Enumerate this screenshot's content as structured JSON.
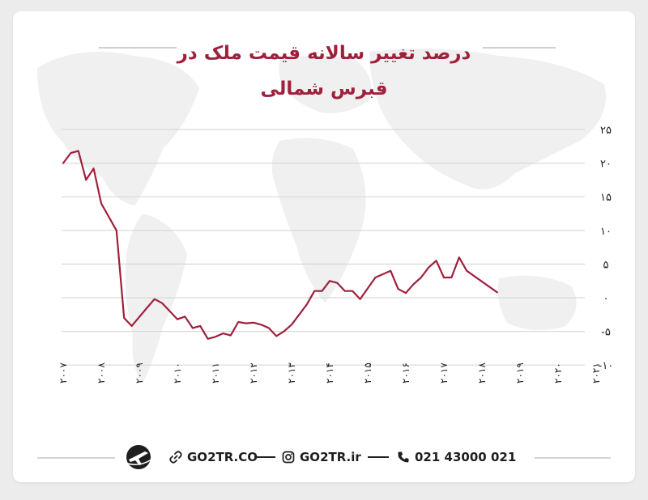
{
  "title_line1": "درصد تغییر سالانه قیمت ملک در",
  "title_line2": "قبرس شمالی",
  "colors": {
    "line": "#a0203c",
    "title": "#a0203c",
    "grid": "#d9d9d9",
    "text": "#222222"
  },
  "footer": {
    "website": "GO2TR.CO",
    "instagram": "GO2TR.ir",
    "phone": "021 43000 021",
    "icons": [
      "logo-plane-icon",
      "link-icon",
      "instagram-icon",
      "phone-icon"
    ]
  },
  "chart_data": {
    "type": "line",
    "title": "درصد تغییر سالانه قیمت ملک در قبرس شمالی",
    "xlabel": "",
    "ylabel": "",
    "ylim": [
      -10,
      25
    ],
    "y_ticks": [
      25,
      20,
      15,
      10,
      5,
      0,
      -5,
      -10
    ],
    "y_tick_labels": [
      "۲۵",
      "۲۰",
      "۱۵",
      "۱۰",
      "۵",
      "۰",
      "-۵",
      "-۱۰"
    ],
    "x_ticks": [
      2007,
      2008,
      2009,
      2010,
      2011,
      2012,
      2013,
      2014,
      2015,
      2016,
      2017,
      2018,
      2019,
      2020,
      2021
    ],
    "x_tick_labels": [
      "۲۰۰۷",
      "۲۰۰۸",
      "۲۰۰۹",
      "۲۰۱۰",
      "۲۰۱۱",
      "۲۰۱۲",
      "۲۰۱۳",
      "۲۰۱۴",
      "۲۰۱۵",
      "۲۰۱۶",
      "۲۰۱۷",
      "۲۰۱۸",
      "۲۰۱۹",
      "۲۰۲۰",
      "۲۰۲۱"
    ],
    "grid": true,
    "series": [
      {
        "points": [
          [
            2007.0,
            20.0
          ],
          [
            2007.2,
            21.5
          ],
          [
            2007.4,
            21.8
          ],
          [
            2007.6,
            17.5
          ],
          [
            2007.8,
            19.2
          ],
          [
            2008.0,
            14.0
          ],
          [
            2008.4,
            10.0
          ],
          [
            2008.6,
            -3.0
          ],
          [
            2008.8,
            -4.2
          ],
          [
            2009.2,
            -1.5
          ],
          [
            2009.4,
            -0.2
          ],
          [
            2009.6,
            -0.8
          ],
          [
            2009.8,
            -2.0
          ],
          [
            2010.0,
            -3.2
          ],
          [
            2010.2,
            -2.8
          ],
          [
            2010.4,
            -4.5
          ],
          [
            2010.6,
            -4.2
          ],
          [
            2010.8,
            -6.1
          ],
          [
            2011.0,
            -5.8
          ],
          [
            2011.2,
            -5.3
          ],
          [
            2011.4,
            -5.6
          ],
          [
            2011.6,
            -3.6
          ],
          [
            2011.8,
            -3.8
          ],
          [
            2012.0,
            -3.7
          ],
          [
            2012.2,
            -4.0
          ],
          [
            2012.4,
            -4.5
          ],
          [
            2012.6,
            -5.7
          ],
          [
            2012.8,
            -5.0
          ],
          [
            2013.0,
            -4.0
          ],
          [
            2013.2,
            -2.5
          ],
          [
            2013.4,
            -1.0
          ],
          [
            2013.6,
            1.0
          ],
          [
            2013.8,
            1.0
          ],
          [
            2014.0,
            2.5
          ],
          [
            2014.2,
            2.2
          ],
          [
            2014.4,
            1.0
          ],
          [
            2014.6,
            1.0
          ],
          [
            2014.8,
            -0.2
          ],
          [
            2015.2,
            3.0
          ],
          [
            2015.4,
            3.5
          ],
          [
            2015.6,
            4.0
          ],
          [
            2015.8,
            1.3
          ],
          [
            2016.0,
            0.7
          ],
          [
            2016.2,
            2.0
          ],
          [
            2016.4,
            3.0
          ],
          [
            2016.6,
            4.5
          ],
          [
            2016.8,
            5.5
          ],
          [
            2017.0,
            3.0
          ],
          [
            2017.2,
            3.0
          ],
          [
            2017.4,
            6.0
          ],
          [
            2017.6,
            4.0
          ],
          [
            2018.4,
            0.8
          ]
        ]
      }
    ]
  }
}
